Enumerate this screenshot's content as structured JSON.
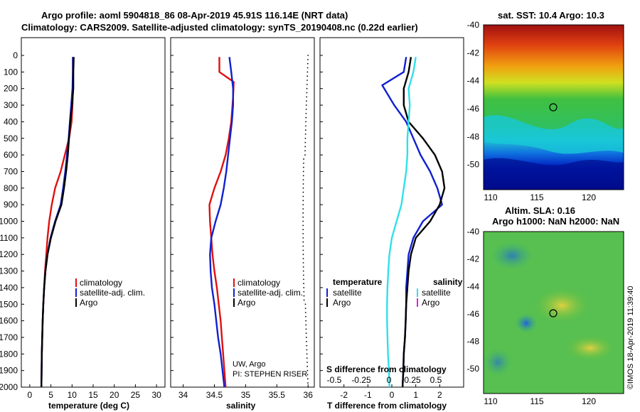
{
  "header": {
    "line1": "Argo profile: aoml 5904818_86 08-Apr-2019 45.91S 116.14E (NRT data)",
    "line2": "Climatology: CARS2009. Satellite-adjusted climatology: synTS_20190408.nc (0.22d earlier)"
  },
  "colors": {
    "climatology": "#e01010",
    "satellite": "#1020d0",
    "argo": "#000000",
    "sat_salinity": "#30e0e8",
    "argo_salinity": "#e020e0"
  },
  "depth_ticks": [
    "0",
    "100",
    "200",
    "300",
    "400",
    "500",
    "600",
    "700",
    "800",
    "900",
    "1000",
    "1100",
    "1200",
    "1300",
    "1400",
    "1500",
    "1600",
    "1700",
    "1800",
    "1900",
    "2000"
  ],
  "chart_data": [
    {
      "type": "line",
      "id": "temperature",
      "xlabel": "temperature (deg C)",
      "ylabel": "",
      "xlim": [
        -2,
        32
      ],
      "ylim": [
        2050,
        0
      ],
      "xticks": [
        "0",
        "5",
        "10",
        "15",
        "20",
        "25",
        "30"
      ],
      "xtick_values": [
        0,
        5,
        10,
        15,
        20,
        25,
        30
      ],
      "legend": [
        "climatology",
        "satellite-adj. clim.",
        "Argo"
      ],
      "legend_placement": "lower-right",
      "series": [
        {
          "name": "climatology",
          "color": "#e01010",
          "x": [
            10.2,
            10.2,
            10.2,
            10.1,
            9.9,
            9.3,
            8.3,
            7.3,
            6.0,
            5.2,
            4.6,
            4.2,
            3.9,
            3.6,
            3.4,
            3.2,
            3.05,
            2.95,
            2.85,
            2.8,
            2.75
          ],
          "y": [
            10,
            100,
            200,
            300,
            400,
            500,
            600,
            700,
            800,
            900,
            1000,
            1100,
            1200,
            1300,
            1400,
            1500,
            1600,
            1700,
            1800,
            1900,
            2000
          ]
        },
        {
          "name": "satellite-adj. clim.",
          "color": "#1020d0",
          "x": [
            10.2,
            10.2,
            10.1,
            9.8,
            9.5,
            9.2,
            8.8,
            8.4,
            7.9,
            7.3,
            6.0,
            4.9,
            4.2,
            3.7,
            3.4,
            3.2,
            3.05,
            2.95,
            2.85,
            2.8,
            2.75
          ],
          "y": [
            10,
            100,
            200,
            300,
            400,
            500,
            600,
            700,
            800,
            900,
            1000,
            1100,
            1200,
            1300,
            1400,
            1500,
            1600,
            1700,
            1800,
            1900,
            2000
          ]
        },
        {
          "name": "Argo",
          "color": "#000000",
          "x": [
            10.4,
            10.3,
            10.3,
            10.0,
            9.6,
            9.3,
            9.0,
            8.6,
            8.1,
            7.5,
            6.1,
            5.0,
            4.2,
            3.7,
            3.4,
            3.2,
            3.05,
            2.95,
            2.85,
            2.8,
            2.75
          ],
          "y": [
            10,
            100,
            200,
            300,
            400,
            500,
            600,
            700,
            800,
            900,
            1000,
            1100,
            1200,
            1300,
            1400,
            1500,
            1600,
            1700,
            1800,
            1900,
            2000
          ]
        }
      ]
    },
    {
      "type": "line",
      "id": "salinity",
      "xlabel": "salinity",
      "xlim": [
        33.8,
        36.1
      ],
      "ylim": [
        2050,
        0
      ],
      "xticks": [
        "34",
        "34.5",
        "35",
        "35.5",
        "36"
      ],
      "xtick_values": [
        34,
        34.5,
        35,
        35.5,
        36
      ],
      "legend": [
        "climatology",
        "satellite-adj. clim.",
        "Argo"
      ],
      "legend_placement": "lower-right",
      "series": [
        {
          "name": "climatology",
          "color": "#e01010",
          "x": [
            34.58,
            34.58,
            34.81,
            34.8,
            34.77,
            34.73,
            34.68,
            34.6,
            34.5,
            34.42,
            34.43,
            34.45,
            34.47,
            34.5,
            34.54,
            34.57,
            34.6,
            34.62,
            34.64,
            34.66,
            34.68
          ],
          "y": [
            10,
            100,
            160,
            250,
            400,
            500,
            600,
            700,
            800,
            900,
            1000,
            1100,
            1200,
            1300,
            1400,
            1500,
            1600,
            1700,
            1800,
            1900,
            2000
          ]
        },
        {
          "name": "satellite-adj. clim.",
          "color": "#1020d0",
          "x": [
            34.74,
            34.77,
            34.8,
            34.8,
            34.78,
            34.75,
            34.72,
            34.69,
            34.65,
            34.6,
            34.52,
            34.45,
            34.43,
            34.44,
            34.46,
            34.5,
            34.53,
            34.56,
            34.6,
            34.63,
            34.66
          ],
          "y": [
            10,
            100,
            200,
            300,
            400,
            500,
            600,
            700,
            800,
            900,
            1000,
            1100,
            1200,
            1300,
            1400,
            1500,
            1600,
            1700,
            1800,
            1900,
            2000
          ]
        }
      ],
      "credit": [
        "UW, Argo",
        "PI: STEPHEN RISER"
      ]
    },
    {
      "type": "line",
      "id": "differences",
      "xlabel": "T difference from climatology",
      "xlabel2": "S difference from climatology",
      "xlim": [
        -3,
        3
      ],
      "ylim": [
        2050,
        0
      ],
      "xticks": [
        "-2",
        "-1",
        "0",
        "1",
        "2"
      ],
      "xtick_values": [
        -2,
        -1,
        0,
        1,
        2
      ],
      "sticks": [
        "-0.5",
        "-0.25",
        "0",
        "0.25",
        "0.5"
      ],
      "legend_left_title": "temperature",
      "legend_right_title": "salinity",
      "legend_left": [
        "satellite",
        "Argo"
      ],
      "legend_right": [
        "satellite",
        "Argo"
      ],
      "series": [
        {
          "name": "satellite",
          "color": "#1020d0",
          "x": [
            0.6,
            0.5,
            -0.4,
            0.1,
            0.6,
            0.9,
            1.2,
            1.6,
            1.9,
            2.1,
            1.3,
            0.9,
            0.7,
            0.65,
            0.6,
            0.6,
            0.58,
            0.55,
            0.5,
            0.48,
            0.45
          ],
          "y": [
            10,
            100,
            180,
            300,
            400,
            500,
            600,
            700,
            800,
            900,
            1000,
            1100,
            1200,
            1300,
            1400,
            1500,
            1600,
            1700,
            1800,
            1900,
            2000
          ]
        },
        {
          "name": "Argo",
          "color": "#000000",
          "x": [
            0.8,
            0.7,
            0.5,
            0.5,
            0.7,
            1.3,
            1.8,
            2.1,
            2.2,
            2.0,
            1.6,
            1.0,
            0.8,
            0.7,
            0.65,
            0.6,
            0.58,
            0.55,
            0.5,
            0.48,
            0.45
          ],
          "y": [
            10,
            100,
            200,
            300,
            400,
            500,
            600,
            700,
            800,
            900,
            1000,
            1100,
            1200,
            1300,
            1400,
            1500,
            1600,
            1700,
            1800,
            1900,
            2000
          ]
        },
        {
          "name": "satellite (S)",
          "color": "#30e0e8",
          "x": [
            1.0,
            0.9,
            0.7,
            0.75,
            0.7,
            0.65,
            0.65,
            0.6,
            0.5,
            0.4,
            0.2,
            0.0,
            -0.1,
            -0.15,
            -0.18,
            -0.2,
            -0.2,
            -0.18,
            -0.16,
            -0.12,
            -0.1
          ],
          "y": [
            10,
            100,
            200,
            300,
            400,
            500,
            600,
            700,
            800,
            900,
            1000,
            1100,
            1200,
            1300,
            1400,
            1500,
            1600,
            1700,
            1800,
            1900,
            2000
          ]
        }
      ]
    }
  ],
  "maps": {
    "sst": {
      "title": "sat. SST: 10.4 Argo: 10.3",
      "yticks": [
        "-40",
        "-42",
        "-44",
        "-46",
        "-48",
        "-50"
      ],
      "xticks": [
        "110",
        "115",
        "120"
      ]
    },
    "sla": {
      "title1": "Altim. SLA: 0.16",
      "title2": "Argo h1000: NaN h2000: NaN",
      "yticks": [
        "-40",
        "-42",
        "-44",
        "-46",
        "-48",
        "-50"
      ],
      "xticks": [
        "110",
        "115",
        "120"
      ]
    },
    "watermark": "©IMOS 18-Apr-2019 11:39:40"
  }
}
